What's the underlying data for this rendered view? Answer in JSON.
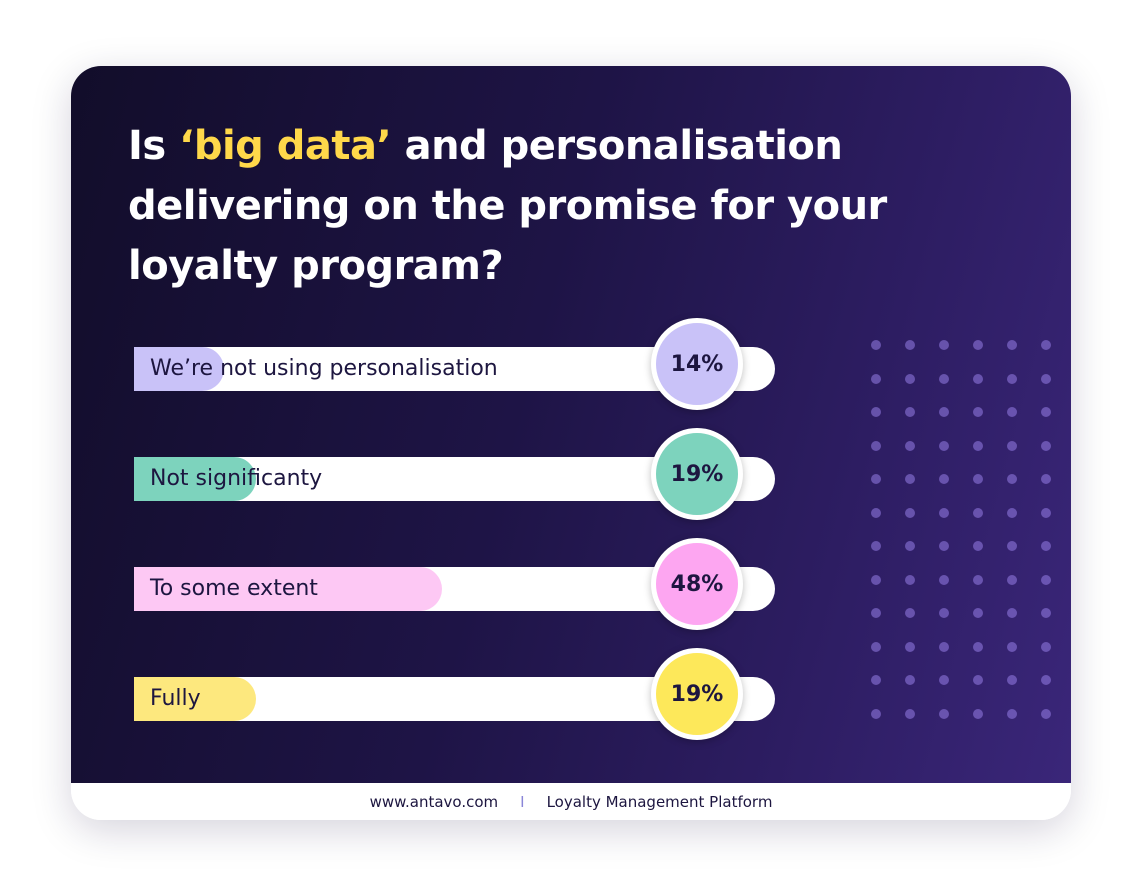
{
  "title": {
    "prefix": "Is ",
    "highlight": "‘big data’",
    "suffix": " and personalisation delivering on the promise for your loyalty program?"
  },
  "chart_data": {
    "type": "bar",
    "orientation": "horizontal",
    "categories": [
      "We’re not using personalisation",
      "Not significanty",
      "To some extent",
      "Fully"
    ],
    "values": [
      14,
      19,
      48,
      19
    ],
    "value_labels": [
      "14%",
      "19%",
      "48%",
      "19%"
    ],
    "unit": "%",
    "xlim": [
      0,
      100
    ],
    "colors": [
      "#c9c2f8",
      "#7dd3bd",
      "#fdc8f4",
      "#fde87e"
    ],
    "badge_colors": [
      "#c9c2f8",
      "#7dd3bd",
      "#fda6f1",
      "#fde85a"
    ]
  },
  "footer": {
    "website": "www.antavo.com",
    "separator": "I",
    "tagline": "Loyalty Management Platform"
  },
  "colors": {
    "background_start": "#120d2a",
    "background_end": "#3a2679",
    "title": "#ffffff",
    "highlight": "#ffd84a",
    "text_dark": "#1d1640"
  }
}
